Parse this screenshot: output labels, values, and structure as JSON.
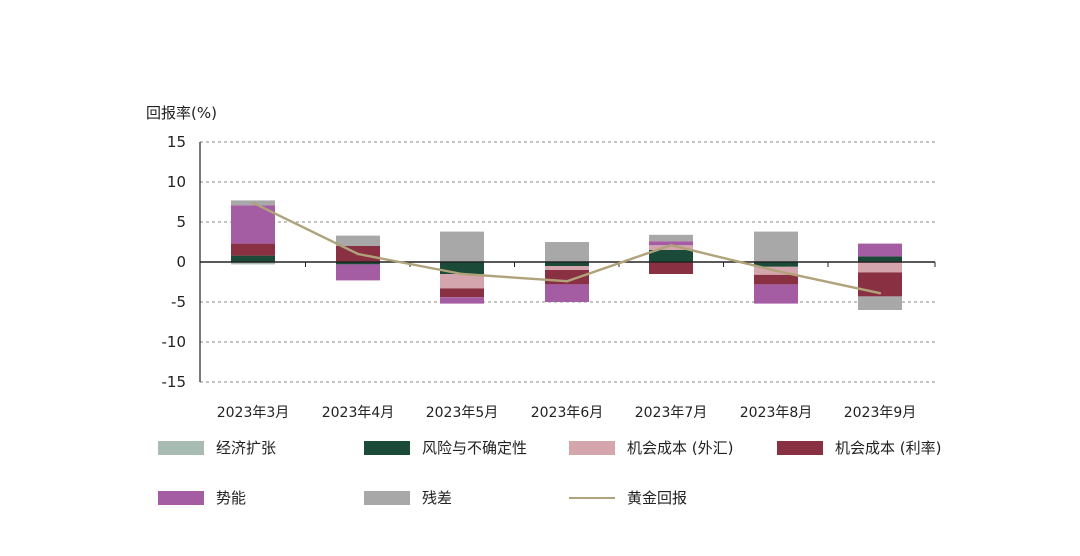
{
  "chart_data": {
    "type": "bar",
    "stacked": true,
    "ylabel": "回报率(%)",
    "ylim": [
      -15,
      15
    ],
    "yticks": [
      15,
      10,
      5,
      0,
      -5,
      -10,
      -15
    ],
    "grid": true,
    "legend_position": "bottom",
    "categories": [
      "2023年3月",
      "2023年4月",
      "2023年5月",
      "2023年6月",
      "2023年7月",
      "2023年8月",
      "2023年9月"
    ],
    "series": [
      {
        "name": "经济扩张",
        "color": "#a9bcb4",
        "values": [
          -0.3,
          0,
          0,
          0,
          0,
          0,
          0
        ]
      },
      {
        "name": "风险与不确定性",
        "color": "#1c4a38",
        "values": [
          0.8,
          -0.3,
          -1.5,
          -0.5,
          1.5,
          -0.6,
          0.7
        ]
      },
      {
        "name": "机会成本 (外汇)",
        "color": "#d4a5ad",
        "values": [
          0,
          0,
          -1.8,
          -0.5,
          0.6,
          -1.0,
          -1.3
        ]
      },
      {
        "name": "机会成本 (利率)",
        "color": "#8a3043",
        "values": [
          1.5,
          2.0,
          -1.1,
          -1.8,
          -1.5,
          -1.2,
          -3.0
        ]
      },
      {
        "name": "势能",
        "color": "#a45da3",
        "values": [
          4.8,
          -2.0,
          -0.8,
          -2.2,
          0.5,
          -2.4,
          1.6
        ]
      },
      {
        "name": "残差",
        "color": "#a8a8a8",
        "values": [
          0.6,
          1.3,
          3.8,
          2.5,
          0.8,
          3.8,
          -1.7
        ]
      }
    ],
    "line_series": {
      "name": "黄金回报",
      "color": "#b0a27a",
      "values": [
        7.4,
        1.0,
        -1.5,
        -2.4,
        2.1,
        -1.1,
        -3.9
      ]
    }
  }
}
